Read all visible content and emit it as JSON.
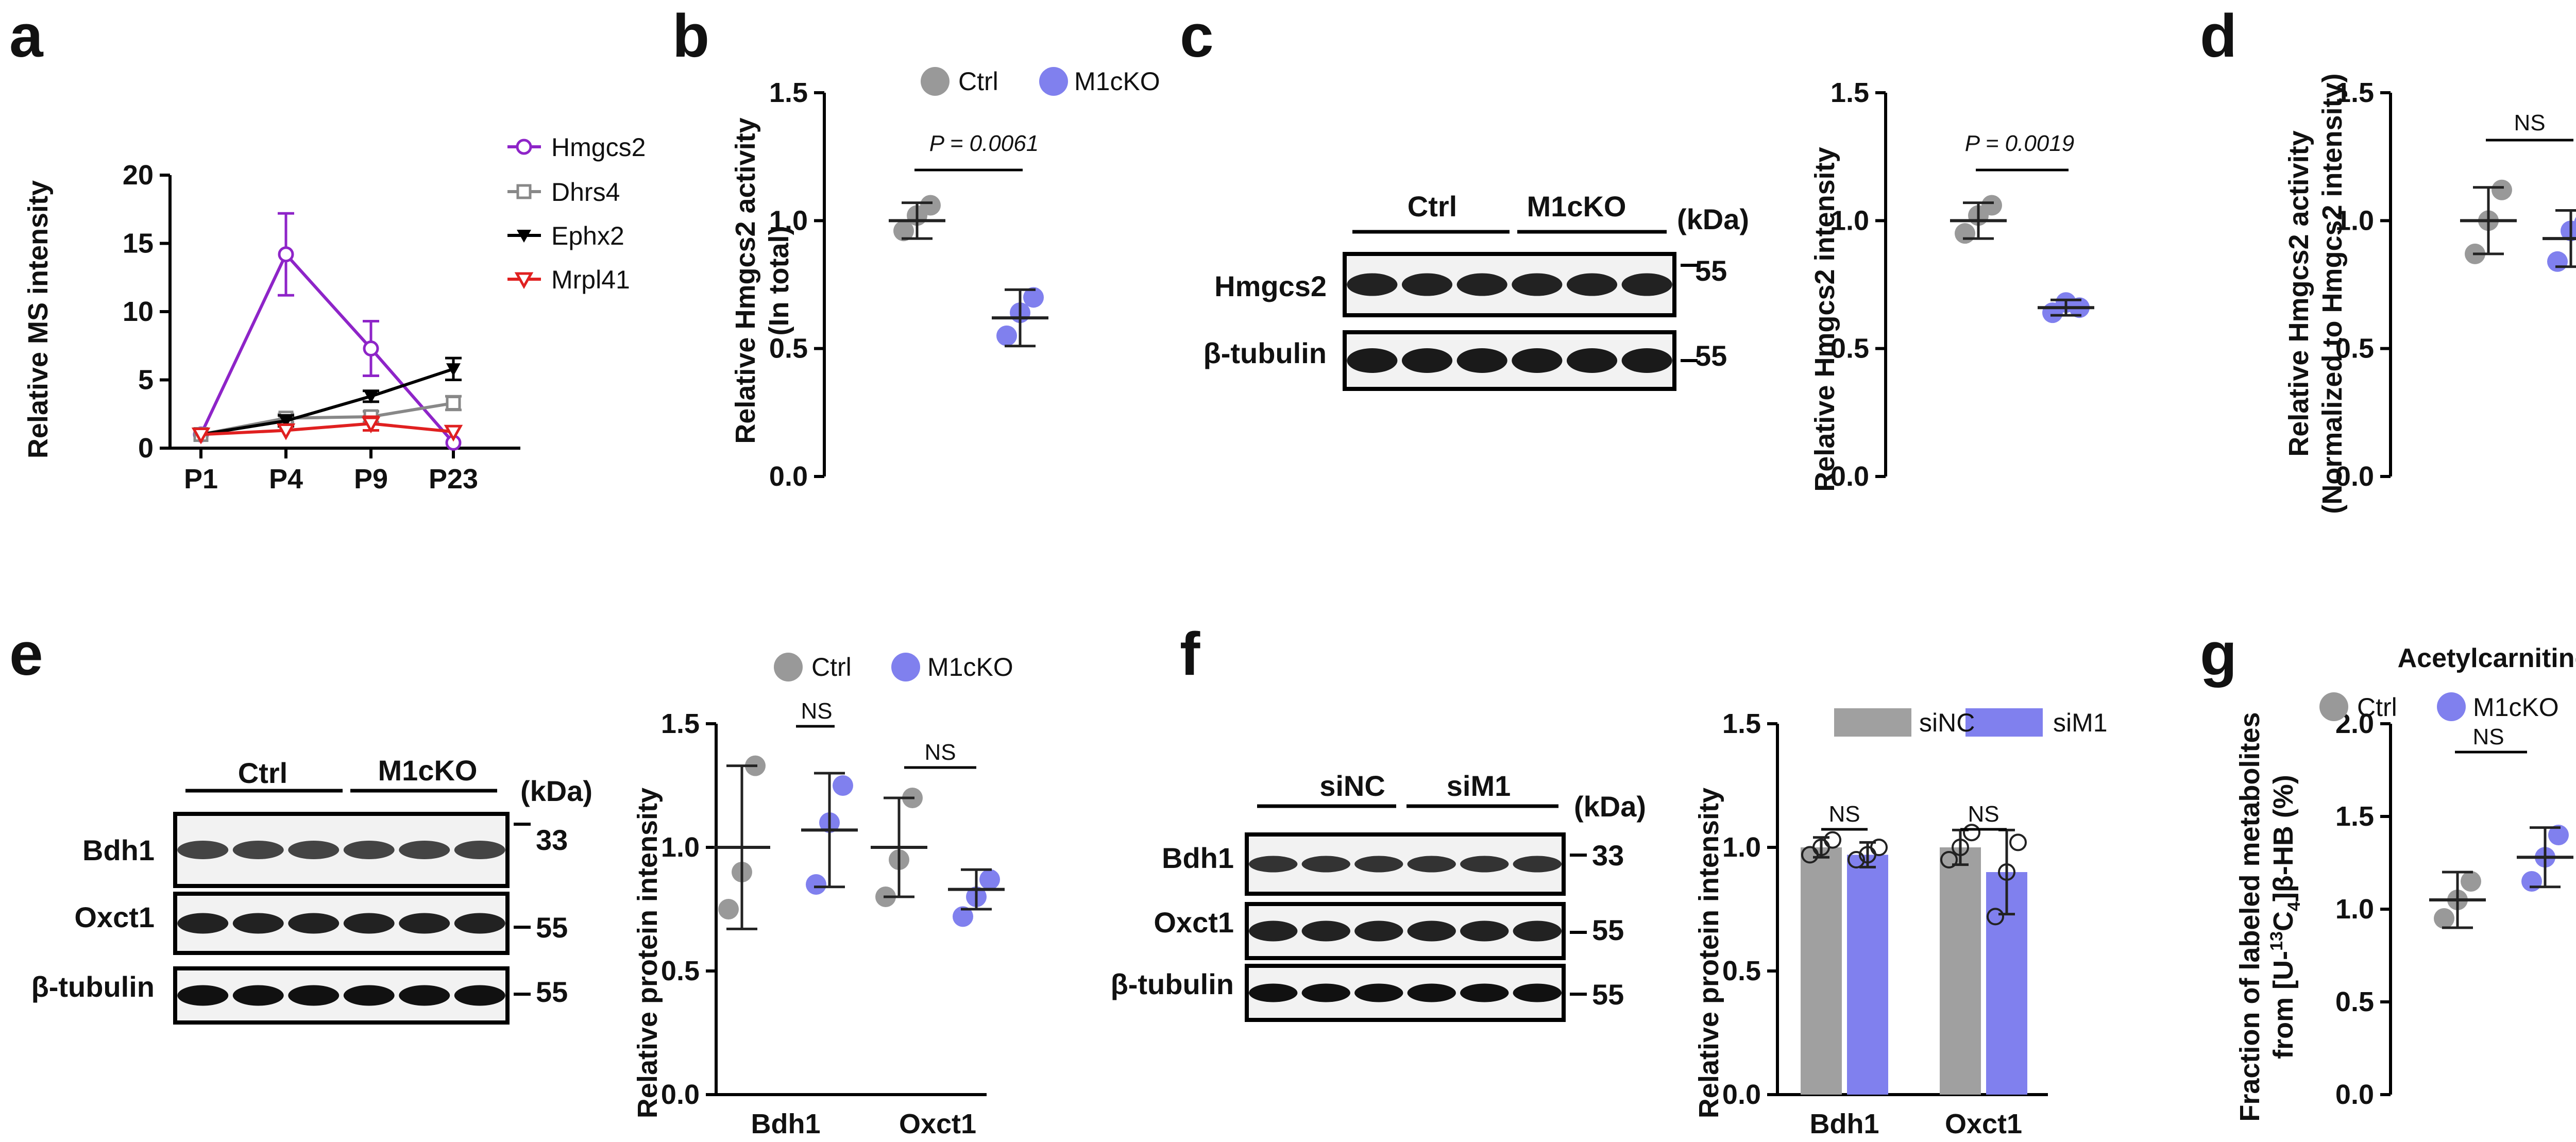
{
  "colors": {
    "ctrl": "#999999",
    "m1ckO": "#8080ee",
    "hmgcs2": "#8e24c8",
    "dhrs4": "#888888",
    "ephx2": "#000000",
    "mrpl41": "#e02020",
    "sinc": "#a0a0a0",
    "sim1": "#8080ee"
  },
  "panel_labels": {
    "a": "a",
    "b": "b",
    "c": "c",
    "d": "d",
    "e": "e",
    "f": "f",
    "g": "g"
  },
  "blots": {
    "c": {
      "groups": [
        "Ctrl",
        "M1cKO"
      ],
      "unit": "(kDa)",
      "rows": [
        {
          "name": "Hmgcs2",
          "kda": "55"
        },
        {
          "name": "β-tubulin",
          "kda": "55"
        }
      ]
    },
    "e": {
      "groups": [
        "Ctrl",
        "M1cKO"
      ],
      "unit": "(kDa)",
      "rows": [
        {
          "name": "Bdh1",
          "kda": "33"
        },
        {
          "name": "Oxct1",
          "kda": "55"
        },
        {
          "name": "β-tubulin",
          "kda": "55"
        }
      ]
    },
    "f": {
      "groups": [
        "siNC",
        "siM1"
      ],
      "unit": "(kDa)",
      "rows": [
        {
          "name": "Bdh1",
          "kda": "33"
        },
        {
          "name": "Oxct1",
          "kda": "55"
        },
        {
          "name": "β-tubulin",
          "kda": "55"
        }
      ]
    }
  },
  "chart_data": [
    {
      "panel": "a",
      "type": "line",
      "ylabel": "Relative MS intensity",
      "ylim": [
        0,
        20
      ],
      "yticks": [
        0,
        5,
        10,
        15,
        20
      ],
      "categories": [
        "P1",
        "P4",
        "P9",
        "P23"
      ],
      "series": [
        {
          "name": "Hmgcs2",
          "marker": "circle",
          "values": [
            1.0,
            14.2,
            7.3,
            0.4
          ],
          "err": [
            0.2,
            3.0,
            2.0,
            0.1
          ]
        },
        {
          "name": "Dhrs4",
          "marker": "square",
          "values": [
            1.0,
            2.2,
            2.3,
            3.3
          ],
          "err": [
            0.2,
            0.3,
            0.4,
            0.5
          ]
        },
        {
          "name": "Ephx2",
          "marker": "triangle-down-filled",
          "values": [
            1.0,
            2.0,
            3.8,
            5.8
          ],
          "err": [
            0.2,
            0.4,
            0.4,
            0.8
          ]
        },
        {
          "name": "Mrpl41",
          "marker": "triangle-down",
          "values": [
            1.0,
            1.3,
            1.8,
            1.2
          ],
          "err": [
            0.1,
            0.2,
            0.5,
            0.2
          ]
        }
      ]
    },
    {
      "panel": "b",
      "type": "scatter",
      "ylabel": "Relative Hmgcs2 activity",
      "ylabel2": "(In total)",
      "ylim": [
        0,
        1.5
      ],
      "yticks": [
        "0.0",
        "0.5",
        "1.0",
        "1.5"
      ],
      "legend": [
        "Ctrl",
        "M1cKO"
      ],
      "annotation": "P = 0.0061",
      "groups": [
        {
          "name": "Ctrl",
          "points": [
            0.96,
            1.02,
            1.06
          ],
          "mean": 1.0,
          "sd": 0.07
        },
        {
          "name": "M1cKO",
          "points": [
            0.55,
            0.64,
            0.7
          ],
          "mean": 0.62,
          "sd": 0.11
        }
      ]
    },
    {
      "panel": "c",
      "type": "scatter",
      "ylabel": "Relative Hmgcs2 intensity",
      "ylim": [
        0,
        1.5
      ],
      "yticks": [
        "0.0",
        "0.5",
        "1.0",
        "1.5"
      ],
      "annotation": "P = 0.0019",
      "groups": [
        {
          "name": "Ctrl",
          "points": [
            0.95,
            1.02,
            1.06
          ],
          "mean": 1.0,
          "sd": 0.07
        },
        {
          "name": "M1cKO",
          "points": [
            0.64,
            0.68,
            0.66
          ],
          "mean": 0.66,
          "sd": 0.03
        }
      ]
    },
    {
      "panel": "d",
      "type": "scatter",
      "ylabel": "Relative Hmgcs2 activity",
      "ylabel2": "(Normalized to Hmgcs2 intensity)",
      "ylim": [
        0,
        1.5
      ],
      "yticks": [
        "0.0",
        "0.5",
        "1.0",
        "1.5"
      ],
      "annotation": "NS",
      "groups": [
        {
          "name": "Ctrl",
          "points": [
            0.87,
            1.0,
            1.12
          ],
          "mean": 1.0,
          "sd": 0.13
        },
        {
          "name": "M1cKO",
          "points": [
            0.84,
            0.96,
            0.99
          ],
          "mean": 0.93,
          "sd": 0.11
        }
      ]
    },
    {
      "panel": "e",
      "type": "scatter",
      "ylabel": "Relative protein intensity",
      "ylim": [
        0,
        1.5
      ],
      "yticks": [
        "0.0",
        "0.5",
        "1.0",
        "1.5"
      ],
      "categories": [
        "Bdh1",
        "Oxct1"
      ],
      "legend": [
        "Ctrl",
        "M1cKO"
      ],
      "annotations": [
        "NS",
        "NS"
      ],
      "groups": [
        {
          "cat": "Bdh1",
          "name": "Ctrl",
          "points": [
            0.75,
            0.9,
            1.33
          ],
          "mean": 1.0,
          "sd": 0.33
        },
        {
          "cat": "Bdh1",
          "name": "M1cKO",
          "points": [
            0.85,
            1.1,
            1.25
          ],
          "mean": 1.07,
          "sd": 0.23
        },
        {
          "cat": "Oxct1",
          "name": "Ctrl",
          "points": [
            0.8,
            0.95,
            1.2
          ],
          "mean": 1.0,
          "sd": 0.2
        },
        {
          "cat": "Oxct1",
          "name": "M1cKO",
          "points": [
            0.72,
            0.8,
            0.87
          ],
          "mean": 0.83,
          "sd": 0.08
        }
      ]
    },
    {
      "panel": "f",
      "type": "bar",
      "ylabel": "Relative protein intensity",
      "ylim": [
        0,
        1.5
      ],
      "yticks": [
        "0.0",
        "0.5",
        "1.0",
        "1.5"
      ],
      "categories": [
        "Bdh1",
        "Oxct1"
      ],
      "legend": [
        "siNC",
        "siM1"
      ],
      "annotations": [
        "NS",
        "NS"
      ],
      "series": [
        {
          "name": "siNC",
          "values": [
            1.0,
            1.0
          ],
          "err": [
            0.04,
            0.07
          ],
          "points": [
            [
              0.97,
              1.0,
              1.03
            ],
            [
              0.95,
              1.0,
              1.06
            ]
          ]
        },
        {
          "name": "siM1",
          "values": [
            0.97,
            0.9
          ],
          "err": [
            0.05,
            0.17
          ],
          "points": [
            [
              0.95,
              0.97,
              1.0
            ],
            [
              0.72,
              0.9,
              1.02
            ]
          ]
        }
      ]
    },
    {
      "panel": "g",
      "type": "scatter",
      "title": "Acetylcarnitine",
      "ylabel": "Fraction of labeled metabolites",
      "ylabel2_pre": "from [U-",
      "ylabel2_sup": "13",
      "ylabel2_mid": "C",
      "ylabel2_sub": "4",
      "ylabel2_post": "]β-HB (%)",
      "ylim": [
        0,
        2.0
      ],
      "yticks": [
        "0.0",
        "0.5",
        "1.0",
        "1.5",
        "2.0"
      ],
      "legend": [
        "Ctrl",
        "M1cKO"
      ],
      "annotation": "NS",
      "groups": [
        {
          "name": "Ctrl",
          "points": [
            0.95,
            1.05,
            1.15
          ],
          "mean": 1.05,
          "sd": 0.15
        },
        {
          "name": "M1cKO",
          "points": [
            1.15,
            1.28,
            1.4
          ],
          "mean": 1.28,
          "sd": 0.16
        }
      ]
    }
  ]
}
